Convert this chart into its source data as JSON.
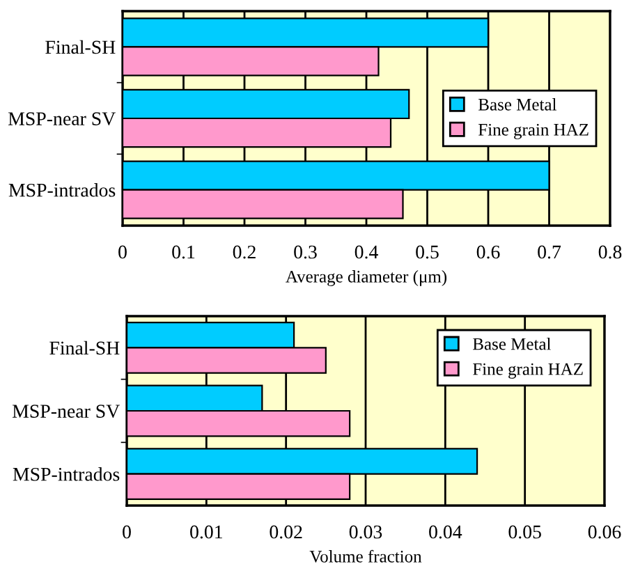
{
  "chart_data": [
    {
      "type": "bar",
      "orientation": "horizontal",
      "xlabel": "Average diameter (μm)",
      "categories": [
        "Final-SH",
        "MSP-near SV",
        "MSP-intrados"
      ],
      "series": [
        {
          "name": "Base Metal",
          "color": "#00ccff",
          "values": [
            0.6,
            0.47,
            0.7
          ]
        },
        {
          "name": "Fine grain HAZ",
          "color": "#ff99cc",
          "values": [
            0.42,
            0.44,
            0.46
          ]
        }
      ],
      "xlim": [
        0,
        0.8
      ],
      "xticks": [
        0,
        0.1,
        0.2,
        0.3,
        0.4,
        0.5,
        0.6,
        0.7,
        0.8
      ],
      "grid": "x",
      "legend": "right"
    },
    {
      "type": "bar",
      "orientation": "horizontal",
      "xlabel": "Volume fraction",
      "categories": [
        "Final-SH",
        "MSP-near SV",
        "MSP-intrados"
      ],
      "series": [
        {
          "name": "Base Metal",
          "color": "#00ccff",
          "values": [
            0.021,
            0.017,
            0.044
          ]
        },
        {
          "name": "Fine grain HAZ",
          "color": "#ff99cc",
          "values": [
            0.025,
            0.028,
            0.028
          ]
        }
      ],
      "xlim": [
        0,
        0.06
      ],
      "xticks": [
        0,
        0.01,
        0.02,
        0.03,
        0.04,
        0.05,
        0.06
      ],
      "grid": "x",
      "legend": "top right"
    }
  ]
}
